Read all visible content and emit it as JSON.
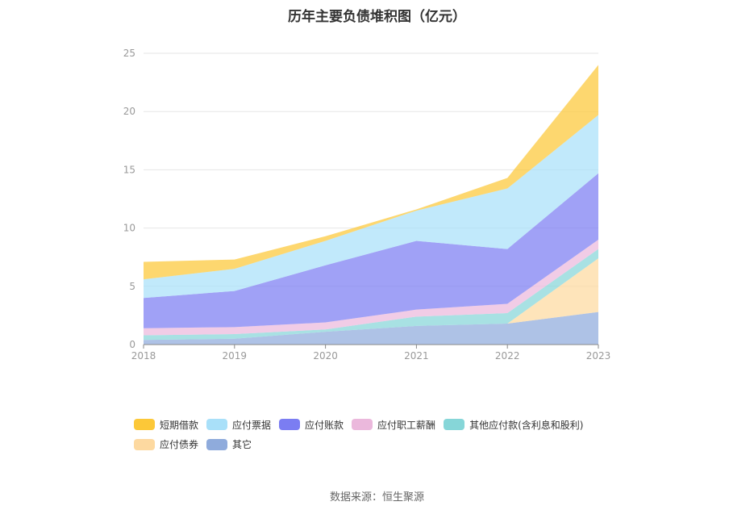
{
  "chart_data": {
    "type": "area",
    "stacked": true,
    "title": "历年主要负债堆积图（亿元）",
    "x": [
      "2018",
      "2019",
      "2020",
      "2021",
      "2022",
      "2023"
    ],
    "ylim": [
      0,
      25
    ],
    "yticks": [
      "0",
      "5",
      "10",
      "15",
      "20",
      "25"
    ],
    "grid": true,
    "legend_position": "bottom",
    "series": [
      {
        "name": "其它",
        "color": "#8fabdc",
        "values": [
          0.4,
          0.5,
          1.1,
          1.6,
          1.8,
          2.8
        ]
      },
      {
        "name": "应付债券",
        "color": "#fdd9a0",
        "values": [
          0.0,
          0.0,
          0.0,
          0.0,
          0.0,
          4.6
        ]
      },
      {
        "name": "其他应付款(含利息和股利)",
        "color": "#86d6d8",
        "values": [
          0.4,
          0.4,
          0.2,
          0.8,
          0.9,
          0.8
        ]
      },
      {
        "name": "应付职工薪酬",
        "color": "#ebb8dc",
        "values": [
          0.6,
          0.6,
          0.6,
          0.6,
          0.8,
          0.8
        ]
      },
      {
        "name": "应付账款",
        "color": "#7b7df2",
        "values": [
          2.6,
          3.1,
          4.9,
          5.9,
          4.7,
          5.7
        ]
      },
      {
        "name": "应付票据",
        "color": "#a9e0f9",
        "values": [
          1.6,
          1.9,
          2.1,
          2.6,
          5.2,
          5.0
        ]
      },
      {
        "name": "短期借款",
        "color": "#fcc838",
        "values": [
          1.5,
          0.8,
          0.4,
          0.1,
          0.9,
          4.3
        ]
      }
    ]
  },
  "legend": {
    "items": [
      {
        "label": "短期借款",
        "color": "#fcc838"
      },
      {
        "label": "应付票据",
        "color": "#a9e0f9"
      },
      {
        "label": "应付账款",
        "color": "#7b7df2"
      },
      {
        "label": "应付职工薪酬",
        "color": "#ebb8dc"
      },
      {
        "label": "其他应付款(含利息和股利)",
        "color": "#86d6d8"
      },
      {
        "label": "应付债券",
        "color": "#fdd9a0"
      },
      {
        "label": "其它",
        "color": "#8fabdc"
      }
    ]
  },
  "source": "数据来源：恒生聚源"
}
